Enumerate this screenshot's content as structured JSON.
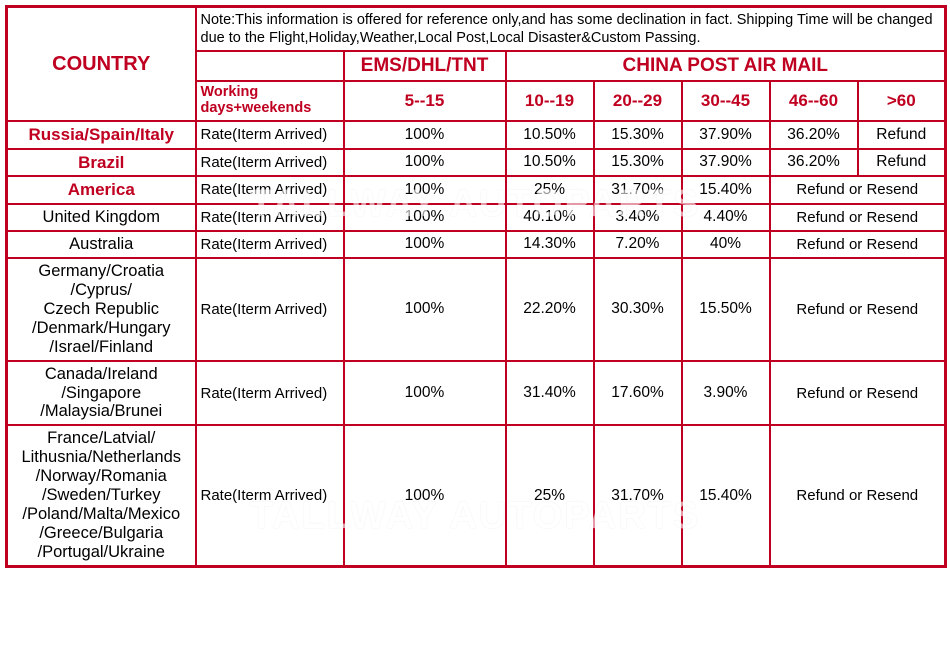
{
  "border_color": "#c00020",
  "red_text": "#c00020",
  "note": "Note:This information is offered for reference only,and has some declination in fact. Shipping Time will be changed due to the Flight,Holiday,Weather,Local Post,Local Disaster&Custom Passing.",
  "headers": {
    "country": "COUNTRY",
    "ems": "EMS/DHL/TNT",
    "cpam": "CHINA POST AIR MAIL",
    "wd": "Working days+weekends",
    "r1": "5--15",
    "r2": "10--19",
    "r3": "20--29",
    "r4": "30--45",
    "r5": "46--60",
    "r6": ">60"
  },
  "rate_label": "Rate(Iterm Arrived)",
  "refund": "Refund",
  "refresend": "Refund or Resend",
  "rows": [
    {
      "country": "Russia/Spain/Italy",
      "red": true,
      "v": [
        "100%",
        "10.50%",
        "15.30%",
        "37.90%",
        "36.20%",
        "Refund"
      ]
    },
    {
      "country": "Brazil",
      "red": true,
      "v": [
        "100%",
        "10.50%",
        "15.30%",
        "37.90%",
        "36.20%",
        "Refund"
      ]
    },
    {
      "country": "America",
      "red": true,
      "v": [
        "100%",
        "25%",
        "31.70%",
        "15.40%",
        "Refund or Resend"
      ]
    },
    {
      "country": "United Kingdom",
      "red": false,
      "v": [
        "100%",
        "40.10%",
        "3.40%",
        "4.40%",
        "Refund or Resend"
      ]
    },
    {
      "country": "Australia",
      "red": false,
      "v": [
        "100%",
        "14.30%",
        "7.20%",
        "40%",
        "Refund or Resend"
      ]
    },
    {
      "country": "Germany/Croatia\n/Cyprus/\nCzech Republic\n/Denmark/Hungary\n/Israel/Finland",
      "red": false,
      "v": [
        "100%",
        "22.20%",
        "30.30%",
        "15.50%",
        "Refund or Resend"
      ]
    },
    {
      "country": "Canada/Ireland\n/Singapore\n/Malaysia/Brunei",
      "red": false,
      "v": [
        "100%",
        "31.40%",
        "17.60%",
        "3.90%",
        "Refund or Resend"
      ]
    },
    {
      "country": "France/Latvial/\nLithusnia/Netherlands\n/Norway/Romania\n/Sweden/Turkey\n/Poland/Malta/Mexico\n/Greece/Bulgaria\n/Portugal/Ukraine",
      "red": false,
      "v": [
        "100%",
        "25%",
        "31.70%",
        "15.40%",
        "Refund or Resend"
      ]
    }
  ],
  "watermark": "TALLWAY AUTOPARTS",
  "col_widths": {
    "country": 189,
    "rate": 148,
    "ems": 162,
    "c1": 88,
    "c2": 88,
    "c3": 88,
    "c4": 88,
    "c5": 88
  }
}
